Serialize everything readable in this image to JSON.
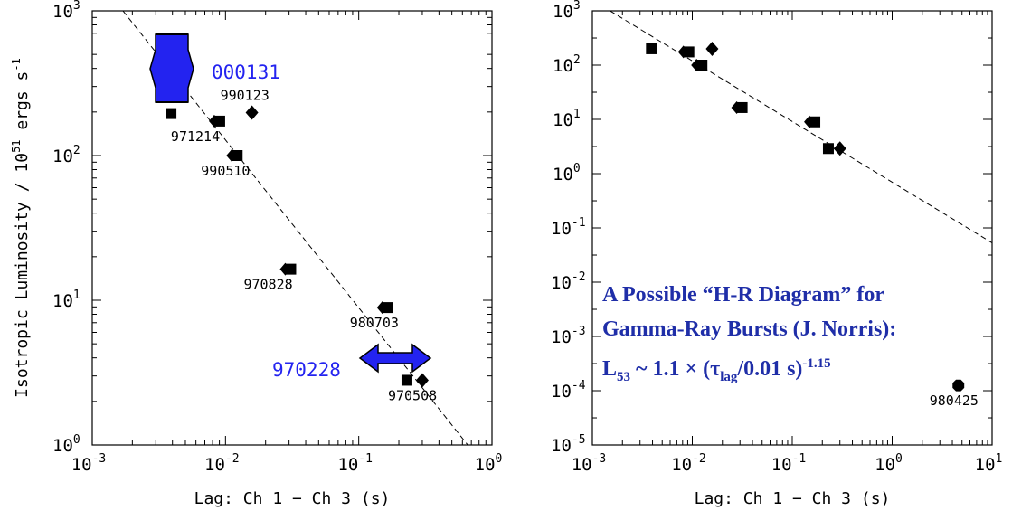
{
  "chart_data": [
    {
      "type": "scatter",
      "scale": "log-log",
      "ylabel": "Isotropic Luminosity / 10<sup>51</sup> ergs s<sup>-1</sup>",
      "ylabel_text": "Isotropic Luminosity / 10^51 ergs s^-1",
      "xlabel": "Lag: Ch 1 − Ch 3 (s)",
      "xlim": [
        0.001,
        1
      ],
      "ylim": [
        1,
        1000
      ],
      "x_ticks": [
        "10",
        "10",
        "10",
        "10"
      ],
      "x_tick_exps": [
        "-3",
        "-2",
        "-1",
        "0"
      ],
      "y_ticks": [
        "10",
        "10",
        "10",
        "10"
      ],
      "y_tick_exps": [
        "0",
        "1",
        "2",
        "3"
      ],
      "fit_line": [
        [
          0.0017,
          1000
        ],
        [
          0.72,
          0.9
        ]
      ],
      "points": [
        {
          "x": 0.0039,
          "y": 195,
          "marker": "square",
          "label": ""
        },
        {
          "x": 0.0085,
          "y": 173,
          "marker": "square-diamond",
          "label": "971214"
        },
        {
          "x": 0.0158,
          "y": 198,
          "marker": "diamond",
          "label": "990123"
        },
        {
          "x": 0.0115,
          "y": 100,
          "marker": "square-diamond",
          "label": "990510"
        },
        {
          "x": 0.029,
          "y": 16.4,
          "marker": "square-diamond",
          "label": "970828"
        },
        {
          "x": 0.155,
          "y": 8.9,
          "marker": "square-diamond",
          "label": "980703"
        },
        {
          "x": 0.23,
          "y": 2.8,
          "marker": "square",
          "label": ""
        },
        {
          "x": 0.3,
          "y": 2.8,
          "marker": "diamond",
          "label": "970508"
        }
      ],
      "ranges": [
        {
          "label": "000131",
          "color": "#2323f0",
          "direction": "vertical"
        },
        {
          "label": "970228",
          "color": "#2323f0",
          "direction": "horizontal"
        }
      ]
    },
    {
      "type": "scatter",
      "scale": "log-log",
      "xlabel": "Lag: Ch 1 − Ch 3 (s)",
      "xlim": [
        0.001,
        10
      ],
      "ylim": [
        1e-05,
        1000
      ],
      "x_ticks": [
        "10",
        "10",
        "10",
        "10",
        "10"
      ],
      "x_tick_exps": [
        "-3",
        "-2",
        "-1",
        "0",
        "1"
      ],
      "y_ticks": [
        "10",
        "10",
        "10",
        "10",
        "10",
        "10",
        "10",
        "10",
        "10"
      ],
      "y_tick_exps": [
        "-5",
        "-4",
        "-3",
        "-2",
        "-1",
        "0",
        "1",
        "2",
        "3"
      ],
      "fit_line": [
        [
          0.0015,
          1000
        ],
        [
          10,
          0.053
        ]
      ],
      "points": [
        {
          "x": 0.0039,
          "y": 200,
          "marker": "square"
        },
        {
          "x": 0.0085,
          "y": 175,
          "marker": "square-diamond"
        },
        {
          "x": 0.0158,
          "y": 200,
          "marker": "diamond"
        },
        {
          "x": 0.0115,
          "y": 100,
          "marker": "square-diamond"
        },
        {
          "x": 0.029,
          "y": 16.5,
          "marker": "square-diamond"
        },
        {
          "x": 0.155,
          "y": 9,
          "marker": "square-diamond"
        },
        {
          "x": 0.23,
          "y": 2.9,
          "marker": "square"
        },
        {
          "x": 0.3,
          "y": 2.9,
          "marker": "diamond"
        },
        {
          "x": 4.6,
          "y": 0.000125,
          "marker": "octagon",
          "label": "980425"
        }
      ]
    }
  ],
  "caption": {
    "line1": "A Possible “H-R Diagram” for",
    "line2": "Gamma-Ray Bursts (J. Norris):",
    "line3_prefix": "L",
    "line3_sub": "53",
    "line3_mid": " ~ 1.1 × (τ",
    "line3_sub2": "lag",
    "line3_rest": "/0.01 s)",
    "line3_sup": "-1.15",
    "color": "#1f2ea8"
  }
}
